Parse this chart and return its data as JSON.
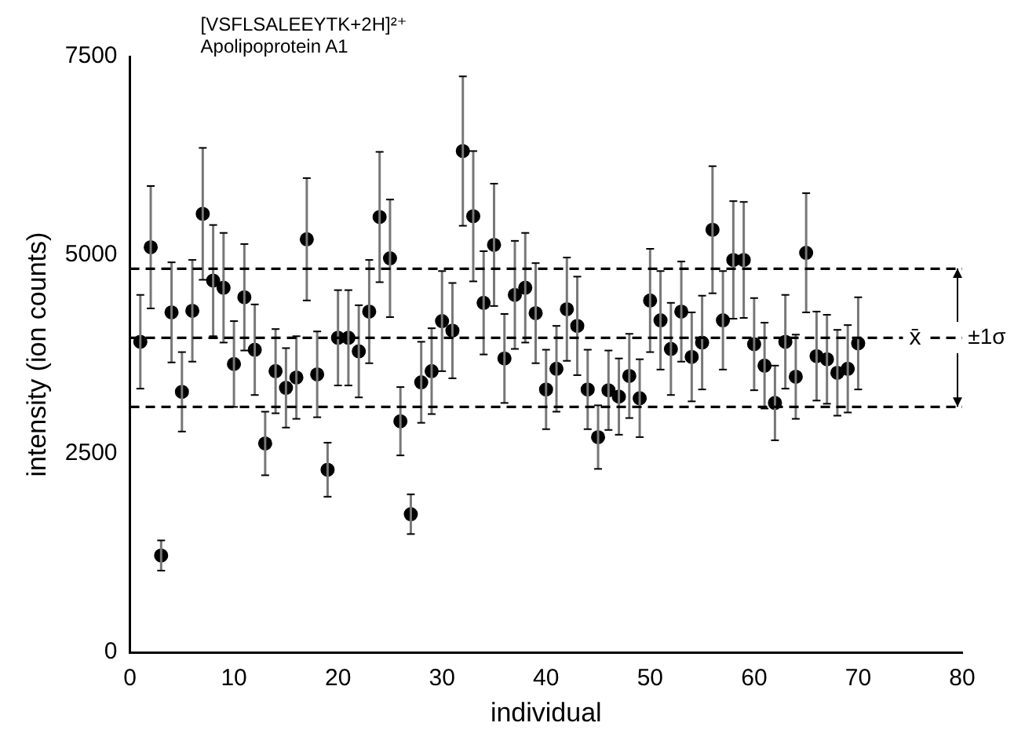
{
  "chart_data": {
    "type": "scatter",
    "title": "[VSFLSALEEYTK+2H]²⁺",
    "subtitle": "Apolipoprotein A1",
    "xlabel": "individual",
    "ylabel": "intensity (ion counts)",
    "x": [
      1,
      2,
      3,
      4,
      5,
      6,
      7,
      8,
      9,
      10,
      11,
      12,
      13,
      14,
      15,
      16,
      17,
      18,
      19,
      20,
      21,
      22,
      23,
      24,
      25,
      26,
      27,
      28,
      29,
      30,
      31,
      32,
      33,
      34,
      35,
      36,
      37,
      38,
      39,
      40,
      41,
      42,
      43,
      44,
      45,
      46,
      47,
      48,
      49,
      50,
      51,
      52,
      53,
      54,
      55,
      56,
      57,
      58,
      59,
      60,
      61,
      62,
      63,
      64,
      65,
      66,
      67,
      68,
      69,
      70
    ],
    "values": [
      3910,
      5100,
      1220,
      4280,
      3280,
      4300,
      5520,
      4680,
      4590,
      3630,
      4470,
      3810,
      2630,
      3540,
      3330,
      3460,
      5200,
      3500,
      2300,
      3960,
      3960,
      3790,
      4290,
      5480,
      4960,
      2910,
      1740,
      3400,
      3540,
      4170,
      4050,
      6310,
      5490,
      4400,
      5130,
      3700,
      4500,
      4590,
      4270,
      3310,
      3570,
      4320,
      4110,
      3310,
      2710,
      3300,
      3220,
      3480,
      3200,
      4430,
      4180,
      3820,
      4290,
      3720,
      3900,
      5320,
      4180,
      4940,
      4940,
      3880,
      3610,
      3140,
      3910,
      3470,
      5030,
      3730,
      3690,
      3520,
      3570,
      3890
    ],
    "errors": [
      590,
      770,
      190,
      630,
      500,
      640,
      830,
      700,
      690,
      540,
      670,
      570,
      400,
      530,
      500,
      520,
      770,
      540,
      340,
      600,
      600,
      580,
      650,
      820,
      740,
      430,
      250,
      510,
      540,
      630,
      600,
      940,
      820,
      650,
      770,
      560,
      680,
      690,
      630,
      500,
      540,
      650,
      620,
      500,
      400,
      500,
      480,
      530,
      490,
      650,
      620,
      580,
      630,
      560,
      590,
      800,
      620,
      740,
      730,
      580,
      540,
      470,
      590,
      530,
      750,
      560,
      560,
      540,
      550,
      580
    ],
    "color": "#000000",
    "marker": "circle",
    "xlim": [
      0,
      80
    ],
    "xticks": [
      0,
      10,
      20,
      30,
      40,
      50,
      60,
      70,
      80
    ],
    "ylim": [
      0,
      7500
    ],
    "yticks": [
      0,
      2500,
      5000,
      7500
    ],
    "grid": false,
    "ref_lines": [
      {
        "axis": "y",
        "value": 4830,
        "line_style": "dashed"
      },
      {
        "axis": "y",
        "value": 3960,
        "label": "x̄",
        "line_style": "dashed"
      },
      {
        "axis": "y",
        "value": 3090,
        "line_style": "dashed"
      }
    ],
    "annotations": [
      {
        "text": "±1σ",
        "x": 79.5,
        "y": 3960
      }
    ]
  }
}
